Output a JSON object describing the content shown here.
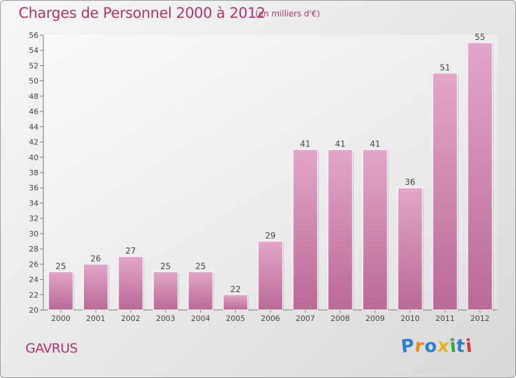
{
  "header": {
    "title": "Charges de Personnel 2000 à 2012",
    "subtitle": "(en milliers d'€)"
  },
  "footer": {
    "commune": "GAVRUS",
    "logo_letters": [
      {
        "ch": "P",
        "color": "#2f7fd0"
      },
      {
        "ch": "r",
        "color": "#e88a1a"
      },
      {
        "ch": "o",
        "color": "#2f7fd0"
      },
      {
        "ch": "x",
        "color": "#e8b21a"
      },
      {
        "ch": "i",
        "color": "#3aa63a"
      },
      {
        "ch": "t",
        "color": "#2f7fd0"
      },
      {
        "ch": "i",
        "color": "#d23c3c"
      }
    ]
  },
  "chart_data": {
    "type": "bar",
    "categories": [
      "2000",
      "2001",
      "2002",
      "2003",
      "2004",
      "2005",
      "2006",
      "2007",
      "2008",
      "2009",
      "2010",
      "2011",
      "2012"
    ],
    "values": [
      25,
      26,
      27,
      25,
      25,
      22,
      29,
      41,
      41,
      41,
      36,
      51,
      55
    ],
    "ylim": [
      20,
      56
    ],
    "yticks": [
      20,
      22,
      24,
      26,
      28,
      30,
      32,
      34,
      36,
      38,
      40,
      42,
      44,
      46,
      48,
      50,
      52,
      54,
      56
    ],
    "grid": false,
    "bar_color": "#c86a9c"
  }
}
